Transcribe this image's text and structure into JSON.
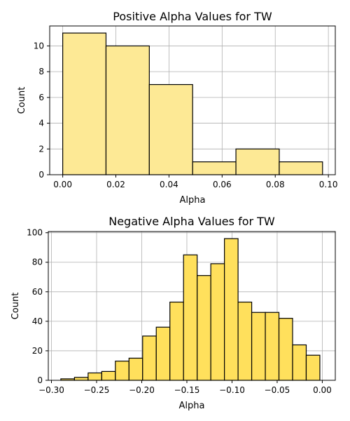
{
  "chart_data": [
    {
      "type": "bar",
      "title": "Positive Alpha Values for TW",
      "xlabel": "Alpha",
      "ylabel": "Count",
      "color": "#fde995",
      "xlim": [
        -0.0049,
        0.1026
      ],
      "ylim": [
        0,
        11.55
      ],
      "xticks": [
        0.0,
        0.02,
        0.04,
        0.06,
        0.08,
        0.1
      ],
      "xtick_labels": [
        "0.00",
        "0.02",
        "0.04",
        "0.06",
        "0.08",
        "0.10"
      ],
      "yticks": [
        0,
        2,
        4,
        6,
        8,
        10
      ],
      "ytick_labels": [
        "0",
        "2",
        "4",
        "6",
        "8",
        "10"
      ],
      "grid": true,
      "bins": [
        {
          "x0": 0.0,
          "x1": 0.0163,
          "count": 11
        },
        {
          "x0": 0.0163,
          "x1": 0.0326,
          "count": 10
        },
        {
          "x0": 0.0326,
          "x1": 0.0489,
          "count": 7
        },
        {
          "x0": 0.0489,
          "x1": 0.0652,
          "count": 1
        },
        {
          "x0": 0.0652,
          "x1": 0.0815,
          "count": 2
        },
        {
          "x0": 0.0815,
          "x1": 0.0978,
          "count": 1
        }
      ]
    },
    {
      "type": "bar",
      "title": "Negative Alpha Values for TW",
      "xlabel": "Alpha",
      "ylabel": "Count",
      "color": "#ffe05c",
      "xlim": [
        -0.3035,
        0.0144
      ],
      "ylim": [
        0,
        100.8
      ],
      "xticks": [
        -0.3,
        -0.25,
        -0.2,
        -0.15,
        -0.1,
        -0.05,
        0.0
      ],
      "xtick_labels": [
        "−0.30",
        "−0.25",
        "−0.20",
        "−0.15",
        "−0.10",
        "−0.05",
        "0.00"
      ],
      "yticks": [
        0,
        20,
        40,
        60,
        80,
        100
      ],
      "ytick_labels": [
        "0",
        "20",
        "40",
        "60",
        "80",
        "100"
      ],
      "grid": true,
      "bins": [
        {
          "x0": -0.2896,
          "x1": -0.2745,
          "count": 1
        },
        {
          "x0": -0.2745,
          "x1": -0.2594,
          "count": 2
        },
        {
          "x0": -0.2594,
          "x1": -0.2443,
          "count": 5
        },
        {
          "x0": -0.2443,
          "x1": -0.2292,
          "count": 6
        },
        {
          "x0": -0.2292,
          "x1": -0.2141,
          "count": 13
        },
        {
          "x0": -0.2141,
          "x1": -0.199,
          "count": 15
        },
        {
          "x0": -0.199,
          "x1": -0.1839,
          "count": 30
        },
        {
          "x0": -0.1839,
          "x1": -0.1688,
          "count": 36
        },
        {
          "x0": -0.1688,
          "x1": -0.1537,
          "count": 53
        },
        {
          "x0": -0.1537,
          "x1": -0.1386,
          "count": 85
        },
        {
          "x0": -0.1386,
          "x1": -0.1235,
          "count": 71
        },
        {
          "x0": -0.1235,
          "x1": -0.1084,
          "count": 79
        },
        {
          "x0": -0.1084,
          "x1": -0.0933,
          "count": 96
        },
        {
          "x0": -0.0933,
          "x1": -0.0782,
          "count": 53
        },
        {
          "x0": -0.0782,
          "x1": -0.0631,
          "count": 46
        },
        {
          "x0": -0.0631,
          "x1": -0.048,
          "count": 46
        },
        {
          "x0": -0.048,
          "x1": -0.0329,
          "count": 42
        },
        {
          "x0": -0.0329,
          "x1": -0.0178,
          "count": 24
        },
        {
          "x0": -0.0178,
          "x1": -0.0027,
          "count": 17
        }
      ]
    }
  ]
}
